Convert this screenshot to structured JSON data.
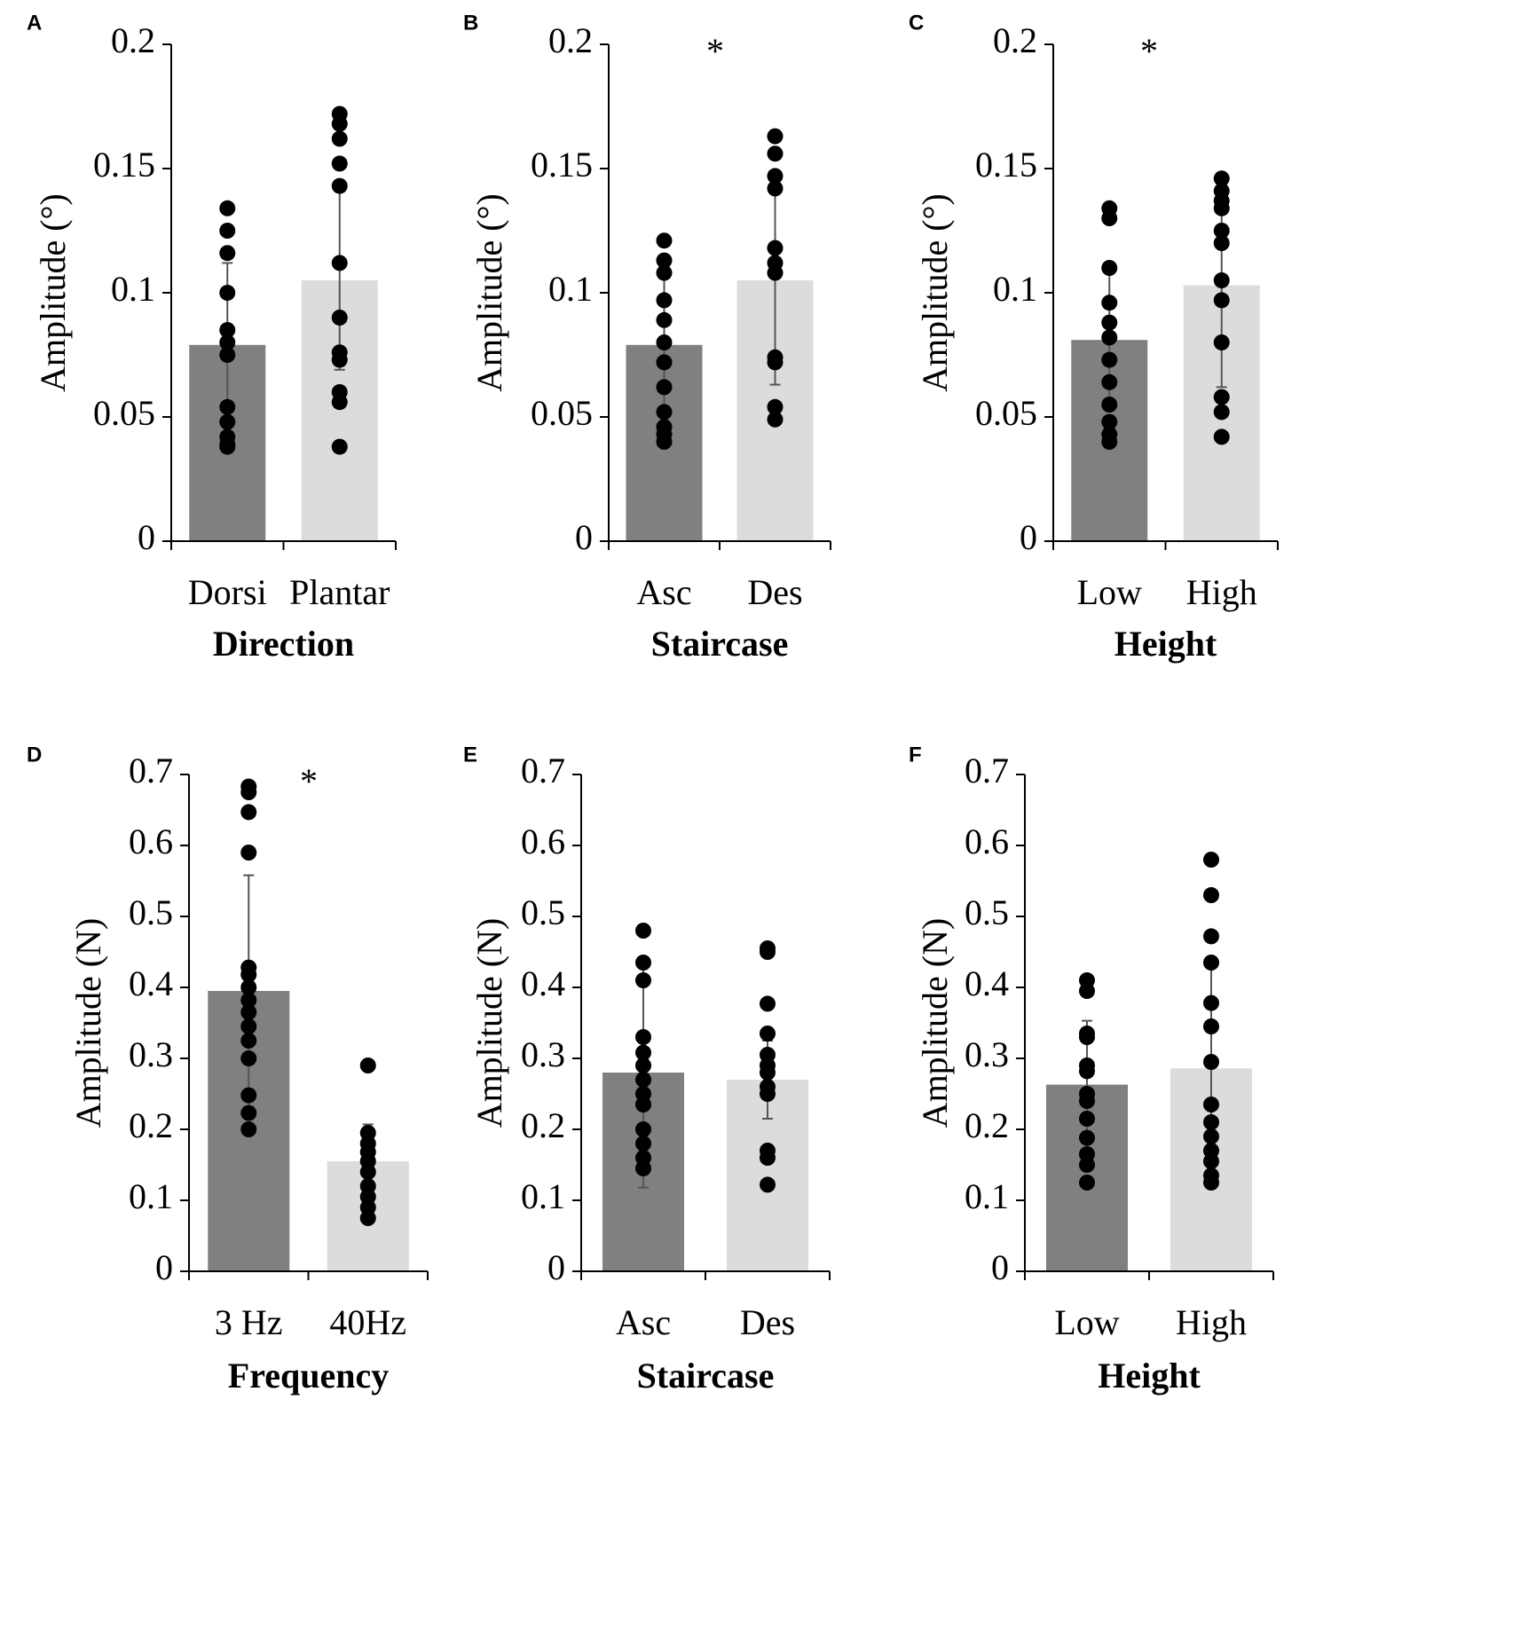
{
  "colors": {
    "bar_dark": "#808080",
    "bar_light": "#dcdcdc",
    "axis": "#000000",
    "dot": "#000000",
    "error_bar": "#555555"
  },
  "chart_data": [
    {
      "panel": "A",
      "type": "bar",
      "categories": [
        "Dorsi",
        "Plantar"
      ],
      "values": [
        0.079,
        0.105
      ],
      "error": [
        0.033,
        0.036
      ],
      "points": [
        [
          0.134,
          0.125,
          0.116,
          0.1,
          0.085,
          0.08,
          0.075,
          0.054,
          0.048,
          0.042,
          0.039,
          0.038
        ],
        [
          0.172,
          0.168,
          0.162,
          0.152,
          0.143,
          0.112,
          0.09,
          0.076,
          0.073,
          0.06,
          0.056,
          0.038
        ]
      ],
      "ylim": [
        0,
        0.2
      ],
      "yticks": [
        "0",
        "0.05",
        "0.1",
        "0.15",
        "0.2"
      ],
      "ylabel": "Amplitude (°)",
      "xlabel": "Direction",
      "significance": ""
    },
    {
      "panel": "B",
      "type": "bar",
      "categories": [
        "Asc",
        "Des"
      ],
      "values": [
        0.079,
        0.105
      ],
      "error": [
        0.034,
        0.042
      ],
      "points": [
        [
          0.121,
          0.113,
          0.108,
          0.097,
          0.089,
          0.08,
          0.072,
          0.062,
          0.052,
          0.046,
          0.043,
          0.04
        ],
        [
          0.163,
          0.156,
          0.147,
          0.142,
          0.118,
          0.112,
          0.108,
          0.074,
          0.072,
          0.054,
          0.049
        ]
      ],
      "ylim": [
        0,
        0.2
      ],
      "yticks": [
        "0",
        "0.05",
        "0.1",
        "0.15",
        "0.2"
      ],
      "ylabel": "Amplitude (°)",
      "xlabel": "Staircase",
      "significance": "*"
    },
    {
      "panel": "C",
      "type": "bar",
      "categories": [
        "Low",
        "High"
      ],
      "values": [
        0.081,
        0.103
      ],
      "error": [
        0.027,
        0.041
      ],
      "points": [
        [
          0.134,
          0.13,
          0.11,
          0.096,
          0.088,
          0.082,
          0.073,
          0.064,
          0.055,
          0.048,
          0.043,
          0.04
        ],
        [
          0.146,
          0.141,
          0.137,
          0.134,
          0.125,
          0.12,
          0.105,
          0.097,
          0.08,
          0.058,
          0.052,
          0.042
        ]
      ],
      "ylim": [
        0,
        0.2
      ],
      "yticks": [
        "0",
        "0.05",
        "0.1",
        "0.15",
        "0.2"
      ],
      "ylabel": "Amplitude (°)",
      "xlabel": "Height",
      "significance": "*"
    },
    {
      "panel": "D",
      "type": "bar",
      "categories": [
        "3 Hz",
        "40Hz"
      ],
      "values": [
        0.395,
        0.155
      ],
      "error": [
        0.163,
        0.052
      ],
      "points": [
        [
          0.683,
          0.675,
          0.647,
          0.59,
          0.428,
          0.418,
          0.4,
          0.382,
          0.365,
          0.345,
          0.325,
          0.3,
          0.248,
          0.223,
          0.2
        ],
        [
          0.29,
          0.195,
          0.18,
          0.168,
          0.155,
          0.14,
          0.12,
          0.105,
          0.09,
          0.075
        ]
      ],
      "ylim": [
        0,
        0.7
      ],
      "yticks": [
        "0",
        "0.1",
        "0.2",
        "0.3",
        "0.4",
        "0.5",
        "0.6",
        "0.7"
      ],
      "ylabel": "Amplitude (N)",
      "xlabel": "Frequency",
      "significance": "*"
    },
    {
      "panel": "E",
      "type": "bar",
      "categories": [
        "Asc",
        "Des"
      ],
      "values": [
        0.28,
        0.27
      ],
      "error": [
        0.162,
        0.055
      ],
      "points": [
        [
          0.48,
          0.435,
          0.41,
          0.33,
          0.308,
          0.29,
          0.27,
          0.25,
          0.235,
          0.2,
          0.18,
          0.16,
          0.145
        ],
        [
          0.455,
          0.45,
          0.377,
          0.335,
          0.305,
          0.29,
          0.28,
          0.26,
          0.25,
          0.17,
          0.16,
          0.122
        ]
      ],
      "ylim": [
        0,
        0.7
      ],
      "yticks": [
        "0",
        "0.1",
        "0.2",
        "0.3",
        "0.4",
        "0.5",
        "0.6",
        "0.7"
      ],
      "ylabel": "Amplitude (N)",
      "xlabel": "Staircase",
      "significance": ""
    },
    {
      "panel": "F",
      "type": "bar",
      "categories": [
        "Low",
        "High"
      ],
      "values": [
        0.263,
        0.286
      ],
      "error": [
        0.09,
        0.147
      ],
      "points": [
        [
          0.41,
          0.395,
          0.335,
          0.33,
          0.29,
          0.282,
          0.25,
          0.24,
          0.215,
          0.188,
          0.165,
          0.15,
          0.125
        ],
        [
          0.58,
          0.53,
          0.472,
          0.435,
          0.378,
          0.345,
          0.295,
          0.235,
          0.21,
          0.19,
          0.17,
          0.155,
          0.135,
          0.125
        ]
      ],
      "ylim": [
        0,
        0.7
      ],
      "yticks": [
        "0",
        "0.1",
        "0.2",
        "0.3",
        "0.4",
        "0.5",
        "0.6",
        "0.7"
      ],
      "ylabel": "Amplitude (N)",
      "xlabel": "Height",
      "significance": ""
    }
  ]
}
